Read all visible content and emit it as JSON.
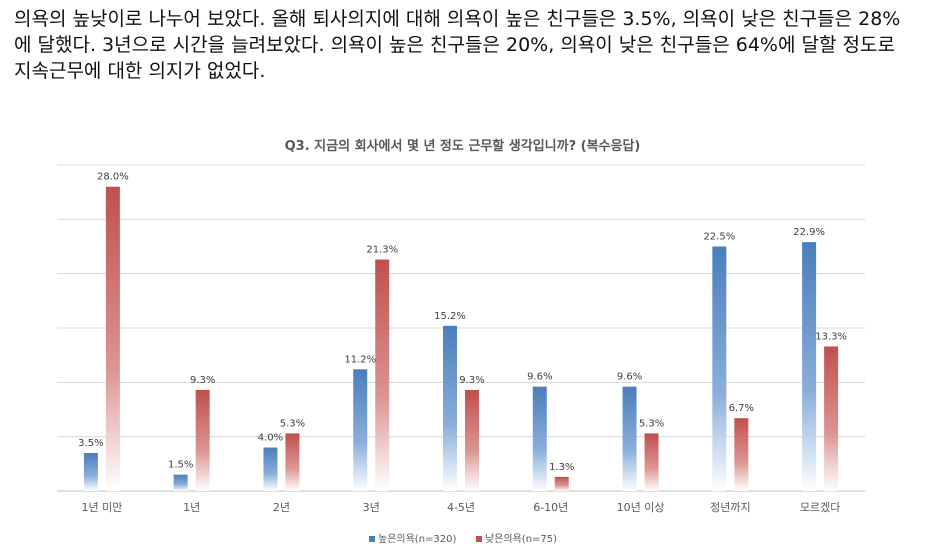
{
  "intro_text": "의욕의 높낮이로 나누어 보았다. 올해 퇴사의지에 대해 의욕이 높은 친구들은 3.5%, 의욕이 낮은 친구들은 28%에 달했다. 3년으로 시간을 늘려보았다. 의욕이 높은 친구들은 20%, 의욕이 낮은 친구들은 64%에 달할 정도로 지속근무에 대한 의지가 없었다.",
  "chart_data": {
    "type": "bar",
    "title": "Q3. 지금의 회사에서 몇 년 정도 근무할 생각입니까? (복수응답)",
    "categories": [
      "1년 미만",
      "1년",
      "2년",
      "3년",
      "4-5년",
      "6-10년",
      "10년 이상",
      "정년까지",
      "모르겠다"
    ],
    "series": [
      {
        "name": "높은의욕(n=320)",
        "color": "#4a7ebb",
        "values": [
          3.5,
          1.5,
          4.0,
          11.2,
          15.2,
          9.6,
          9.6,
          22.5,
          22.9
        ],
        "labels": [
          "3.5%",
          "1.5%",
          "4.0%",
          "11.2%",
          "15.2%",
          "9.6%",
          "9.6%",
          "22.5%",
          "22.9%"
        ]
      },
      {
        "name": "낮은의욕(n=75)",
        "color": "#c0504d",
        "values": [
          28.0,
          9.3,
          5.3,
          21.3,
          9.3,
          1.3,
          5.3,
          6.7,
          13.3
        ],
        "labels": [
          "28.0%",
          "9.3%",
          "5.3%",
          "21.3%",
          "9.3%",
          "1.3%",
          "5.3%",
          "6.7%",
          "13.3%"
        ]
      }
    ],
    "ylim": [
      0,
      30
    ],
    "grid": true,
    "legend_position": "bottom"
  }
}
